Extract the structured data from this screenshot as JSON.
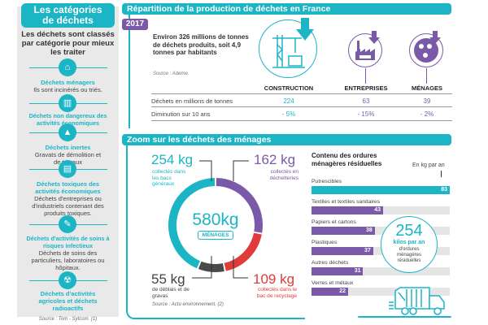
{
  "left_panel": {
    "title_line1": "Les catégories",
    "title_line2": "de déchets",
    "intro": "Les déchets sont classés par catégorie pour mieux les traiter",
    "categories": [
      {
        "icon": "house-icon",
        "title": "Déchets ménagers",
        "desc": "Ils sont incinérés ou triés."
      },
      {
        "icon": "factory-icon",
        "title": "Déchets non dangereux des activités économiques",
        "desc": ""
      },
      {
        "icon": "rubble-icon",
        "title": "Déchets inertes",
        "desc": "Gravats de démolition et de travaux"
      },
      {
        "icon": "barrel-icon",
        "title": "Déchets toxiques des activités économiques",
        "desc": "Déchets d'entreprises ou d'industriels contenant des produits toxiques."
      },
      {
        "icon": "syringe-icon",
        "title": "Déchets d'activités de soins à risques infectieux",
        "desc": "Déchets de soins des particuliers, laboratoires ou hôpitaux."
      },
      {
        "icon": "radioactive-icon",
        "title": "Déchets d'activités agricoles et déchets radioactifs",
        "desc": ""
      }
    ],
    "source": "Source : Tom - Sytcom. (1)"
  },
  "section1": {
    "title": "Répartition de la production de déchets en France",
    "year": "2017",
    "intro": "Environ 326 millions de tonnes de déchets produits, soit 4,9 tonnes par habitants",
    "source": "Source : Ademe.",
    "columns": [
      "CONSTRUCTION",
      "ENTREPRISES",
      "MÉNAGES"
    ],
    "icons": [
      "crane-icon",
      "factory-icon",
      "people-icon"
    ],
    "rows": [
      {
        "label": "Déchets en millions de tonnes",
        "values": [
          "224",
          "63",
          "39"
        ]
      },
      {
        "label": "Diminution sur 10 ans",
        "values": [
          "- 5%",
          "- 15%",
          "- 2%"
        ]
      }
    ],
    "colors": {
      "teal": "#1bb5c6",
      "purple": "#7a5aa8"
    }
  },
  "section2": {
    "title": "Zoom sur les déchets des ménages",
    "total": "580kg",
    "total_label": "MÉNAGES",
    "source": "Source : Actu environnement. (2)",
    "segments": [
      {
        "value": "254 kg",
        "kg": 254,
        "desc": "collectés dans les bacs généraux",
        "color": "#1bb5c6"
      },
      {
        "value": "162 kg",
        "kg": 162,
        "desc": "collectés en déchetteries",
        "color": "#7a5aa8"
      },
      {
        "value": "109 kg",
        "kg": 109,
        "desc": "collectés dans le bac de recyclage",
        "color": "#e03a3a"
      },
      {
        "value": "55 kg",
        "kg": 55,
        "desc": "de déblais et de gravas",
        "color": "#4a4a4a"
      }
    ],
    "residual": {
      "title_line1": "Contenu des ordures",
      "title_line2": "ménagères résiduelles",
      "unit": "En kg par an",
      "max": 83,
      "items": [
        {
          "label": "Putrescibles",
          "value": 83,
          "display": "83",
          "color": "#1bb5c6"
        },
        {
          "label": "Textiles et textiles sanitaires",
          "value": 43,
          "display": "43",
          "color": "#7a5aa8"
        },
        {
          "label": "Papiers et cartons",
          "value": 38,
          "display": "38",
          "color": "#7a5aa8"
        },
        {
          "label": "Plastiques",
          "value": 37,
          "display": "37",
          "color": "#7a5aa8"
        },
        {
          "label": "Autres déchets",
          "value": 31,
          "display": "31",
          "color": "#7a5aa8"
        },
        {
          "label": "Verres et métaux",
          "value": 22,
          "display": "22",
          "color": "#7a5aa8"
        }
      ]
    },
    "kilos": {
      "number": "254",
      "line1": "kilos par an",
      "line2": "d'ordures ménagères résiduelles"
    }
  }
}
